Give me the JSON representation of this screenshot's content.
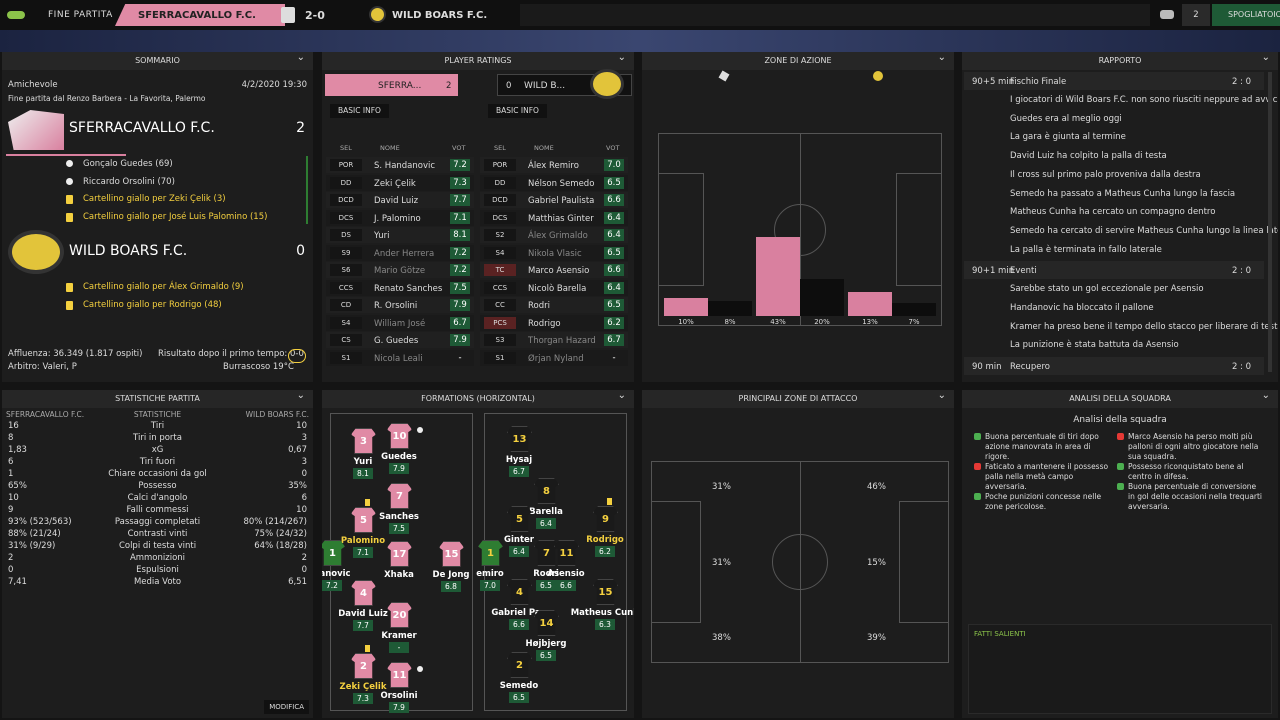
{
  "header": {
    "stage": "FINE PARTITA",
    "home_team": "SFERRACAVALLO F.C.",
    "score": "2-0",
    "away_team": "WILD BOARS F.C.",
    "badge_count": "2",
    "button": "SPOGLIATOIO"
  },
  "summary": {
    "title": "SOMMARIO",
    "competition": "Amichevole",
    "datetime": "4/2/2020 19:30",
    "venue": "Fine partita dal Renzo Barbera - La Favorita, Palermo",
    "home": {
      "name": "SFERRACAVALLO F.C.",
      "goals": "2",
      "events": [
        {
          "kind": "goal",
          "text": "Gonçalo Guedes (69)"
        },
        {
          "kind": "goal",
          "text": "Riccardo Orsolini (70)"
        },
        {
          "kind": "yellow",
          "text": "Cartellino giallo per Zeki Çelik (3)"
        },
        {
          "kind": "yellow",
          "text": "Cartellino giallo per José Luis Palomino (15)"
        }
      ]
    },
    "away": {
      "name": "WILD BOARS F.C.",
      "goals": "0",
      "events": [
        {
          "kind": "yellow",
          "text": "Cartellino giallo per Álex Grimaldo (9)"
        },
        {
          "kind": "yellow",
          "text": "Cartellino giallo per Rodrigo (48)"
        }
      ]
    },
    "attendance": "Affluenza: 36.349 (1.817 ospiti)",
    "halftime": "Risultato dopo il primo tempo: 0-0",
    "referee": "Arbitro: Valeri, P",
    "weather": "Burrascoso 19°C"
  },
  "player_ratings": {
    "title": "PLAYER RATINGS",
    "home_short": "SFERRA...",
    "home_goals": "2",
    "away_short": "WILD B...",
    "away_goals": "0",
    "filter": "BASIC INFO",
    "columns": [
      "SEL",
      "NOME",
      "VOT"
    ],
    "home": [
      [
        "POR",
        "S. Handanovic",
        "7.2"
      ],
      [
        "DD",
        "Zeki Çelik",
        "7.3"
      ],
      [
        "DCD",
        "David Luiz",
        "7.7"
      ],
      [
        "DCS",
        "J. Palomino",
        "7.1"
      ],
      [
        "DS",
        "Yuri",
        "8.1"
      ],
      [
        "S9",
        "Ander Herrera",
        "7.2"
      ],
      [
        "S6",
        "Mario Götze",
        "7.2"
      ],
      [
        "CCS",
        "Renato Sanches",
        "7.5"
      ],
      [
        "CD",
        "R. Orsolini",
        "7.9"
      ],
      [
        "S4",
        "William José",
        "6.7"
      ],
      [
        "CS",
        "G. Guedes",
        "7.9"
      ],
      [
        "S1",
        "Nicola Leali",
        "-"
      ]
    ],
    "away": [
      [
        "POR",
        "Álex Remiro",
        "7.0"
      ],
      [
        "DD",
        "Nélson Semedo",
        "6.5"
      ],
      [
        "DCD",
        "Gabriel Paulista",
        "6.6"
      ],
      [
        "DCS",
        "Matthias Ginter",
        "6.4"
      ],
      [
        "S2",
        "Álex Grimaldo",
        "6.4"
      ],
      [
        "S4",
        "Nikola Vlasic",
        "6.5"
      ],
      [
        "TC",
        "Marco Asensio",
        "6.6"
      ],
      [
        "CCS",
        "Nicolò Barella",
        "6.4"
      ],
      [
        "CC",
        "Rodri",
        "6.5"
      ],
      [
        "PCS",
        "Rodrigo",
        "6.2"
      ],
      [
        "S3",
        "Thorgan Hazard",
        "6.7"
      ],
      [
        "S1",
        "Ørjan Nyland",
        "-"
      ]
    ]
  },
  "action_zones": {
    "title": "ZONE DI AZIONE",
    "values": [
      10,
      8,
      43,
      20,
      13,
      7
    ],
    "value_labels": [
      "10%",
      "8%",
      "43%",
      "20%",
      "13%",
      "7%"
    ],
    "ylim": [
      0,
      100
    ],
    "colors": [
      "#d9809f",
      "#0d0d0d"
    ]
  },
  "report": {
    "title": "RAPPORTO",
    "groups": [
      {
        "time": "90+5 min",
        "label": "Fischio Finale",
        "score": "2 : 0",
        "items": [
          "I giocatori di Wild Boars F.C. non sono riusciti neppure ad avvicinarsi!",
          "Guedes era al meglio oggi",
          "La gara è giunta al termine",
          "David Luiz ha colpito la palla di testa",
          "Il cross sul primo palo proveniva dalla destra",
          "Semedo ha passato a Matheus Cunha lungo la fascia",
          "Matheus Cunha ha cercato un compagno dentro",
          "Semedo ha cercato di servire Matheus Cunha lungo la linea laterale",
          "La palla è terminata in fallo laterale"
        ]
      },
      {
        "time": "90+1 min",
        "label": "Eventi",
        "score": "2 : 0",
        "items": [
          "Sarebbe stato un gol eccezionale per Asensio",
          "Handanovic ha bloccato il pallone",
          "Kramer ha preso bene il tempo dello stacco per liberare di testa",
          "La punizione è stata battuta da Asensio"
        ]
      },
      {
        "time": "90 min",
        "label": "Recupero",
        "score": "2 : 0",
        "items": []
      }
    ]
  },
  "match_stats": {
    "title": "STATISTICHE PARTITA",
    "home": "SFERRACAVALLO F.C.",
    "label": "STATISTICHE",
    "away": "WILD BOARS F.C.",
    "rows": [
      [
        "16",
        "Tiri",
        "10"
      ],
      [
        "8",
        "Tiri in porta",
        "3"
      ],
      [
        "1,83",
        "xG",
        "0,67"
      ],
      [
        "6",
        "Tiri fuori",
        "3"
      ],
      [
        "1",
        "Chiare occasioni da gol",
        "0"
      ],
      [
        "65%",
        "Possesso",
        "35%"
      ],
      [
        "10",
        "Calci d'angolo",
        "6"
      ],
      [
        "9",
        "Falli commessi",
        "10"
      ],
      [
        "93% (523/563)",
        "Passaggi completati",
        "80% (214/267)"
      ],
      [
        "88% (21/24)",
        "Contrasti vinti",
        "75% (24/32)"
      ],
      [
        "31% (9/29)",
        "Colpi di testa vinti",
        "64% (18/28)"
      ],
      [
        "2",
        "Ammonizioni",
        "2"
      ],
      [
        "0",
        "Espulsioni",
        "0"
      ],
      [
        "7,41",
        "Media Voto",
        "6,51"
      ]
    ]
  },
  "formations": {
    "title": "FORMATIONS (HORIZONTAL)",
    "home": [
      {
        "number": "3",
        "name": "Yuri",
        "rating": "8.1"
      },
      {
        "number": "10",
        "name": "Guedes",
        "rating": "7.9",
        "scored": true
      },
      {
        "number": "7",
        "name": "Sanches",
        "rating": "7.5"
      },
      {
        "number": "5",
        "name": "Palomino",
        "rating": "7.1",
        "booked": true
      },
      {
        "number": "1",
        "name": "danovic",
        "rating": "7.2"
      },
      {
        "number": "17",
        "name": "Xhaka",
        "rating": null
      },
      {
        "number": "15",
        "name": "De Jong",
        "rating": "6.8"
      },
      {
        "number": "4",
        "name": "David Luiz",
        "rating": "7.7"
      },
      {
        "number": "20",
        "name": "Kramer",
        "rating": "-"
      },
      {
        "number": "2",
        "name": "Zeki Çelik",
        "rating": "7.3",
        "booked": true
      },
      {
        "number": "11",
        "name": "Orsolini",
        "rating": "7.9",
        "scored": true
      }
    ],
    "away": [
      {
        "number": "13",
        "name": "Hysaj",
        "rating": "6.7"
      },
      {
        "number": "8",
        "name": "Barella",
        "rating": "6.4"
      },
      {
        "number": "9",
        "name": "Rodrigo",
        "rating": "6.2",
        "booked": true
      },
      {
        "number": "5",
        "name": "Ginter",
        "rating": "6.4"
      },
      {
        "number": "7",
        "name": "Rodri",
        "rating": "6.5"
      },
      {
        "number": "11",
        "name": "Asensio",
        "rating": "6.6"
      },
      {
        "number": "1",
        "name": "emiro",
        "rating": "7.0"
      },
      {
        "number": "15",
        "name": "Matheus Cunh",
        "rating": "6.3"
      },
      {
        "number": "4",
        "name": "Gabriel Pau",
        "rating": "6.6"
      },
      {
        "number": "14",
        "name": "Højbjerg",
        "rating": "6.5"
      },
      {
        "number": "2",
        "name": "Semedo",
        "rating": "6.5"
      }
    ]
  },
  "attack_zones": {
    "title": "PRINCIPALI ZONE DI ATTACCO",
    "home": [
      "31%",
      "31%",
      "38%"
    ],
    "away": [
      "46%",
      "15%",
      "39%"
    ]
  },
  "analysis": {
    "title": "ANALISI DELLA SQUADRA",
    "heading": "Analisi della squadra",
    "home": [
      {
        "kind": "positive",
        "text": "Buona percentuale di tiri dopo azione manovrata in area di rigore."
      },
      {
        "kind": "negative",
        "text": "Faticato a mantenere il possesso palla nella metà campo avversaria."
      },
      {
        "kind": "positive",
        "text": "Poche punizioni concesse nelle zone pericolose."
      }
    ],
    "away": [
      {
        "kind": "negative",
        "text": "Marco Asensio ha perso molti più palloni di ogni altro giocatore nella sua squadra."
      },
      {
        "kind": "positive",
        "text": "Possesso riconquistato bene al centro in difesa."
      },
      {
        "kind": "positive",
        "text": "Buona percentuale di conversione in gol delle occasioni nella trequarti avversaria."
      }
    ],
    "highlights": "FATTI SALIENTI"
  },
  "modify_button": "MODIFICA"
}
